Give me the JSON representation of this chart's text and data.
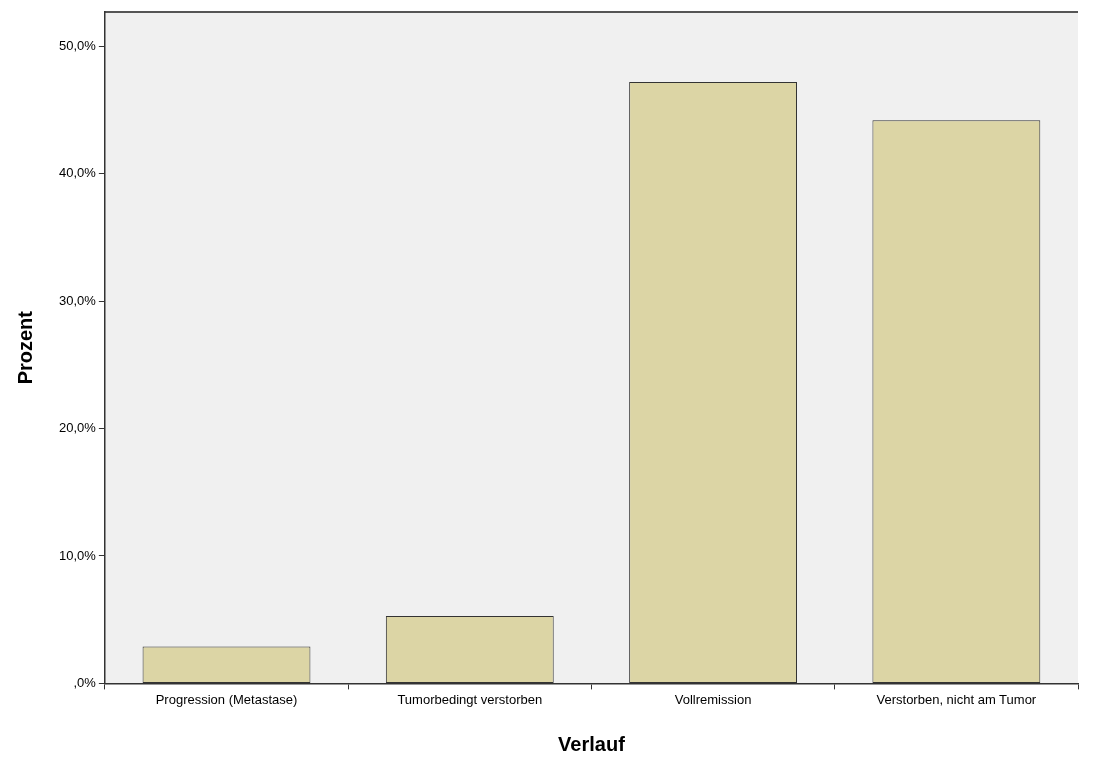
{
  "chart_data": {
    "type": "bar",
    "xlabel": "Verlauf",
    "ylabel": "Prozent",
    "categories": [
      "Progression (Metastase)",
      "Tumorbedingt verstorben",
      "Vollremission",
      "Verstorben, nicht am Tumor"
    ],
    "values": [
      2.9,
      5.3,
      47.2,
      44.2
    ],
    "color": "#dcd5a5",
    "ylim": [
      0,
      52.7
    ],
    "yticks": [
      {
        "value": 0,
        "label": ",0%"
      },
      {
        "value": 10,
        "label": "10,0%"
      },
      {
        "value": 20,
        "label": "20,0%"
      },
      {
        "value": 30,
        "label": "30,0%"
      },
      {
        "value": 40,
        "label": "40,0%"
      },
      {
        "value": 50,
        "label": "50,0%"
      }
    ],
    "grid": false,
    "legend": false
  }
}
